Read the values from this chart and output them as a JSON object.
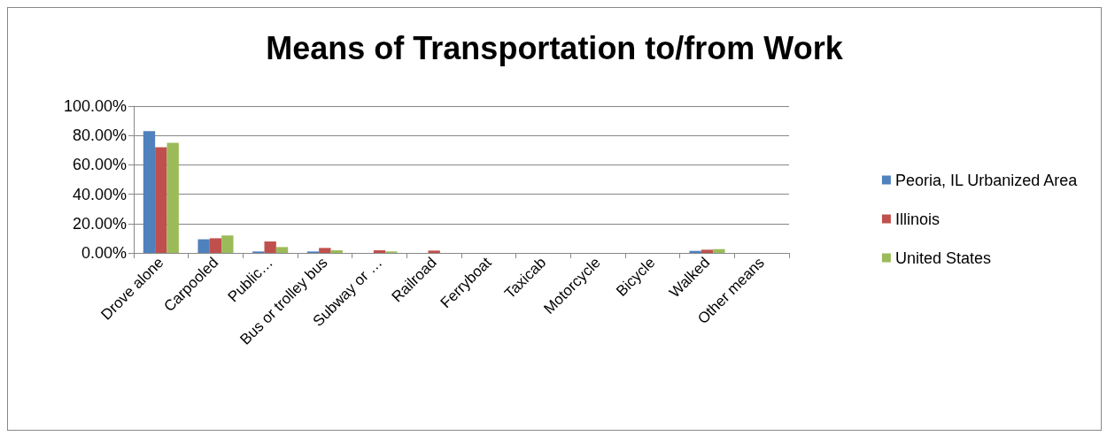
{
  "chart_data": {
    "type": "bar",
    "title": "Means of Transportation to/from Work",
    "categories": [
      "Drove alone",
      "Carpooled",
      "Public…",
      "Bus or trolley bus",
      "Subway or …",
      "Railroad",
      "Ferryboat",
      "Taxicab",
      "Motorcycle",
      "Bicycle",
      "Walked",
      "Other means"
    ],
    "series": [
      {
        "name": "Peoria, IL Urbanized Area",
        "color": "#4f81bd",
        "values": [
          83,
          9.3,
          1,
          1,
          0,
          0,
          0,
          0,
          0,
          0,
          1.4,
          0
        ]
      },
      {
        "name": "Illinois",
        "color": "#c0504d",
        "values": [
          72,
          10,
          7.8,
          3.4,
          1.8,
          1.6,
          0,
          0,
          0,
          0,
          2.2,
          0
        ]
      },
      {
        "name": "United States",
        "color": "#9bbb59",
        "values": [
          75,
          11.9,
          4,
          1.8,
          1,
          0,
          0,
          0,
          0,
          0,
          2.6,
          0
        ]
      }
    ],
    "ylim": [
      0,
      100
    ],
    "yticks": [
      {
        "value": 0,
        "label": "0.00%"
      },
      {
        "value": 20,
        "label": "20.00%"
      },
      {
        "value": 40,
        "label": "40.00%"
      },
      {
        "value": 60,
        "label": "60.00%"
      },
      {
        "value": 80,
        "label": "80.00%"
      },
      {
        "value": 100,
        "label": "100.00%"
      }
    ],
    "grid": "y",
    "legend": "right"
  }
}
